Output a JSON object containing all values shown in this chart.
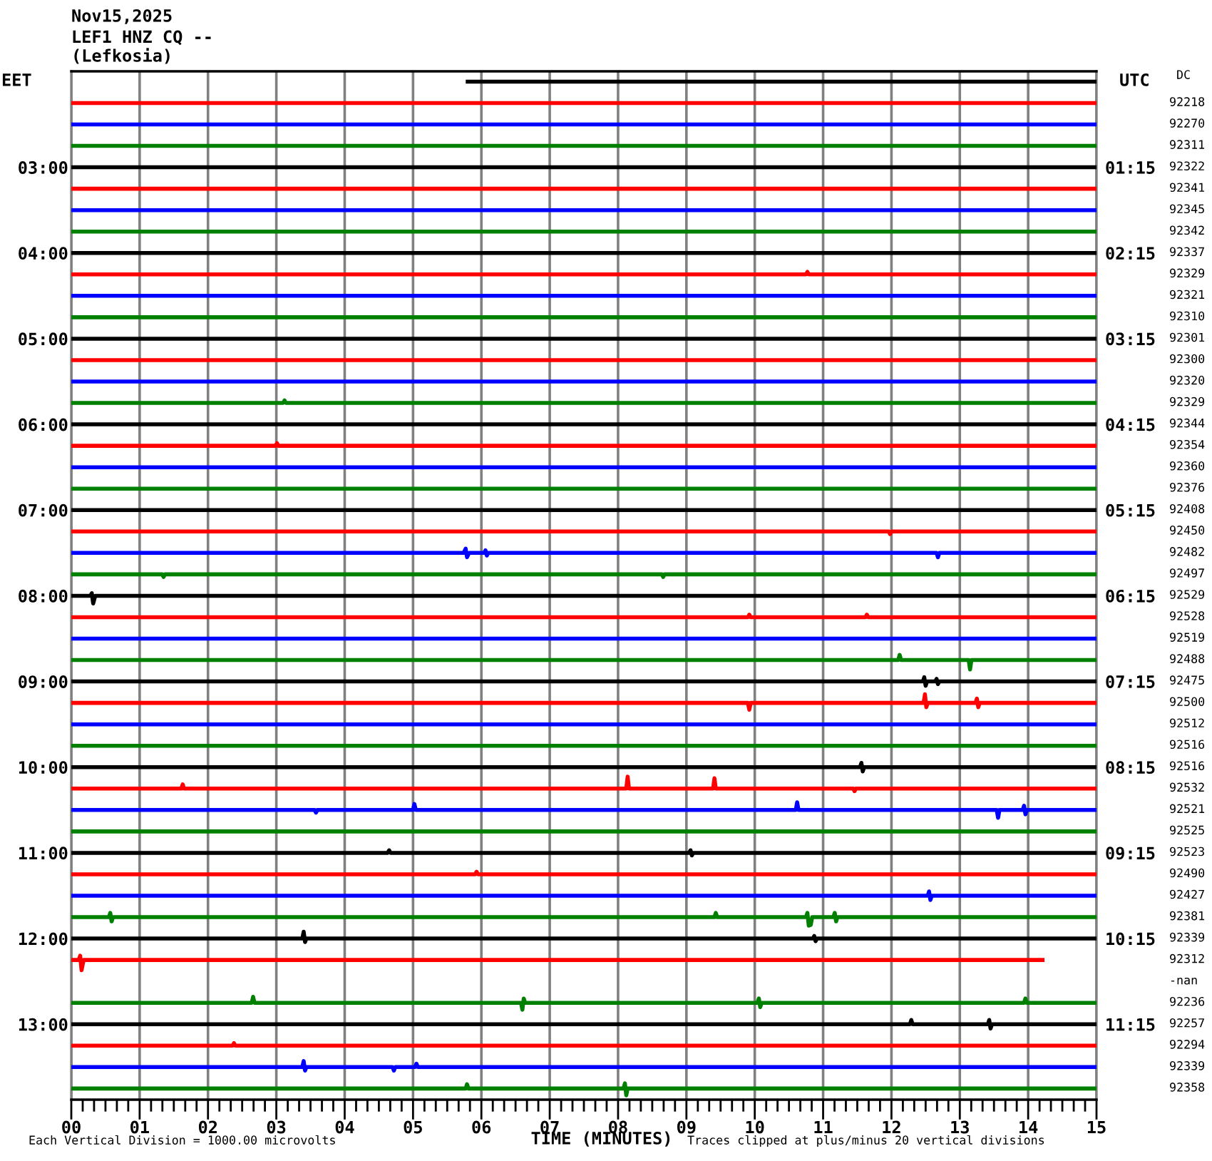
{
  "chart_data": {
    "type": "line",
    "title": "Nov15,2025",
    "subtitle": "LEF1 HNZ CQ --\n(Lefkosia)",
    "xlabel": "TIME (MINUTES)",
    "ylabel": "EET",
    "y2label": "UTC",
    "annotations": [
      "DC",
      "92218",
      "92270",
      "92311",
      "92322",
      "92341",
      "92345",
      "92342",
      "92337",
      "92329",
      "92321",
      "92310",
      "92301",
      "92300",
      "92320",
      "92329",
      "92344",
      "92354",
      "92360",
      "92376",
      "92408",
      "92450",
      "92482",
      "92497",
      "92529",
      "92528",
      "92519",
      "92488",
      "92475",
      "92500",
      "92512",
      "92516",
      "92516",
      "92532",
      "92521",
      "92525",
      "92523",
      "92490",
      "92427",
      "92381",
      "92339",
      "92312",
      "-nan",
      "92236",
      "92257",
      "92294",
      "92339",
      "92358",
      "Each Vertical Division = 1000.00 microvolts",
      "Traces clipped at plus/minus 20 vertical divisions"
    ],
    "grid": "x",
    "xlim": [
      0,
      15
    ],
    "xticks": [
      {
        "value": 0,
        "label": "00"
      },
      {
        "value": 0.167,
        "label": null
      },
      {
        "value": 0.333,
        "label": null
      },
      {
        "value": 0.5,
        "label": null
      },
      {
        "value": 0.667,
        "label": null
      },
      {
        "value": 0.833,
        "label": null
      },
      {
        "value": 1,
        "label": "01"
      },
      {
        "value": 1.167,
        "label": null
      },
      {
        "value": 1.333,
        "label": null
      },
      {
        "value": 1.5,
        "label": null
      },
      {
        "value": 1.667,
        "label": null
      },
      {
        "value": 1.833,
        "label": null
      },
      {
        "value": 2,
        "label": "02"
      },
      {
        "value": 2.167,
        "label": null
      },
      {
        "value": 2.333,
        "label": null
      },
      {
        "value": 2.5,
        "label": null
      },
      {
        "value": 2.667,
        "label": null
      },
      {
        "value": 2.833,
        "label": null
      },
      {
        "value": 3,
        "label": "03"
      },
      {
        "value": 3.167,
        "label": null
      },
      {
        "value": 3.333,
        "label": null
      },
      {
        "value": 3.5,
        "label": null
      },
      {
        "value": 3.667,
        "label": null
      },
      {
        "value": 3.833,
        "label": null
      },
      {
        "value": 4,
        "label": "04"
      },
      {
        "value": 4.167,
        "label": null
      },
      {
        "value": 4.333,
        "label": null
      },
      {
        "value": 4.5,
        "label": null
      },
      {
        "value": 4.667,
        "label": null
      },
      {
        "value": 4.833,
        "label": null
      },
      {
        "value": 5,
        "label": "05"
      },
      {
        "value": 5.167,
        "label": null
      },
      {
        "value": 5.333,
        "label": null
      },
      {
        "value": 5.5,
        "label": null
      },
      {
        "value": 5.667,
        "label": null
      },
      {
        "value": 5.833,
        "label": null
      },
      {
        "value": 6,
        "label": "06"
      },
      {
        "value": 6.167,
        "label": null
      },
      {
        "value": 6.333,
        "label": null
      },
      {
        "value": 6.5,
        "label": null
      },
      {
        "value": 6.667,
        "label": null
      },
      {
        "value": 6.833,
        "label": null
      },
      {
        "value": 7,
        "label": "07"
      },
      {
        "value": 7.167,
        "label": null
      },
      {
        "value": 7.333,
        "label": null
      },
      {
        "value": 7.5,
        "label": null
      },
      {
        "value": 7.667,
        "label": null
      },
      {
        "value": 7.833,
        "label": null
      },
      {
        "value": 8,
        "label": "08"
      },
      {
        "value": 8.167,
        "label": null
      },
      {
        "value": 8.333,
        "label": null
      },
      {
        "value": 8.5,
        "label": null
      },
      {
        "value": 8.667,
        "label": null
      },
      {
        "value": 8.833,
        "label": null
      },
      {
        "value": 9,
        "label": "09"
      },
      {
        "value": 9.167,
        "label": null
      },
      {
        "value": 9.333,
        "label": null
      },
      {
        "value": 9.5,
        "label": null
      },
      {
        "value": 9.667,
        "label": null
      },
      {
        "value": 9.833,
        "label": null
      },
      {
        "value": 10,
        "label": "10"
      },
      {
        "value": 10.167,
        "label": null
      },
      {
        "value": 10.333,
        "label": null
      },
      {
        "value": 10.5,
        "label": null
      },
      {
        "value": 10.667,
        "label": null
      },
      {
        "value": 10.833,
        "label": null
      },
      {
        "value": 11,
        "label": "11"
      },
      {
        "value": 11.167,
        "label": null
      },
      {
        "value": 11.333,
        "label": null
      },
      {
        "value": 11.5,
        "label": null
      },
      {
        "value": 11.667,
        "label": null
      },
      {
        "value": 11.833,
        "label": null
      },
      {
        "value": 12,
        "label": "12"
      },
      {
        "value": 12.167,
        "label": null
      },
      {
        "value": 12.333,
        "label": null
      },
      {
        "value": 12.5,
        "label": null
      },
      {
        "value": 12.667,
        "label": null
      },
      {
        "value": 12.833,
        "label": null
      },
      {
        "value": 13,
        "label": "13"
      },
      {
        "value": 13.167,
        "label": null
      },
      {
        "value": 13.333,
        "label": null
      },
      {
        "value": 13.5,
        "label": null
      },
      {
        "value": 13.667,
        "label": null
      },
      {
        "value": 13.833,
        "label": null
      },
      {
        "value": 14,
        "label": "14"
      },
      {
        "value": 14.167,
        "label": null
      },
      {
        "value": 14.333,
        "label": null
      },
      {
        "value": 14.5,
        "label": null
      },
      {
        "value": 14.667,
        "label": null
      },
      {
        "value": 14.833,
        "label": null
      },
      {
        "value": 15,
        "label": "15"
      }
    ],
    "ylim": [
      13.88,
      1.88
    ],
    "yticks": [
      {
        "value": 3,
        "label": "03:00"
      },
      {
        "value": 4,
        "label": "04:00"
      },
      {
        "value": 5,
        "label": "05:00"
      },
      {
        "value": 6,
        "label": "06:00"
      },
      {
        "value": 7,
        "label": "07:00"
      },
      {
        "value": 8,
        "label": "08:00"
      },
      {
        "value": 9,
        "label": "09:00"
      },
      {
        "value": 10,
        "label": "10:00"
      },
      {
        "value": 11,
        "label": "11:00"
      },
      {
        "value": 12,
        "label": "12:00"
      },
      {
        "value": 13,
        "label": "13:00"
      }
    ],
    "y2lim": [
      12.13,
      0.13
    ],
    "y2ticks": [
      {
        "value": 1.25,
        "label": "01:15"
      },
      {
        "value": 2.25,
        "label": "02:15"
      },
      {
        "value": 3.25,
        "label": "03:15"
      },
      {
        "value": 4.25,
        "label": "04:15"
      },
      {
        "value": 5.25,
        "label": "05:15"
      },
      {
        "value": 6.25,
        "label": "06:15"
      },
      {
        "value": 7.25,
        "label": "07:15"
      },
      {
        "value": 8.25,
        "label": "08:15"
      },
      {
        "value": 9.25,
        "label": "09:15"
      },
      {
        "value": 10.25,
        "label": "10:15"
      },
      {
        "value": 11.25,
        "label": "11:15"
      }
    ],
    "series": [
      {
        "color": "#000000",
        "x": [
          5.8,
          15
        ],
        "values": [
          2,
          2
        ]
      },
      {
        "color": "#ff0000",
        "x": [
          0,
          15
        ],
        "values": [
          2.25,
          2.25
        ]
      },
      {
        "color": "#0000ff",
        "x": [
          0,
          15
        ],
        "values": [
          2.5,
          2.5
        ]
      },
      {
        "color": "#008000",
        "x": [
          0,
          15
        ],
        "values": [
          2.75,
          2.75
        ]
      },
      {
        "color": "#000000",
        "x": [
          0,
          15
        ],
        "values": [
          3,
          3
        ]
      },
      {
        "color": "#ff0000",
        "x": [
          0,
          15
        ],
        "values": [
          3.25,
          3.25
        ]
      },
      {
        "color": "#0000ff",
        "x": [
          0,
          15
        ],
        "values": [
          3.5,
          3.5
        ]
      },
      {
        "color": "#008000",
        "x": [
          0,
          15
        ],
        "values": [
          3.75,
          3.75
        ]
      },
      {
        "color": "#000000",
        "x": [
          0,
          15
        ],
        "values": [
          4,
          4
        ]
      },
      {
        "color": "#ff0000",
        "x": [
          0,
          10.75,
          10.77,
          10.79,
          15
        ],
        "values": [
          4.25,
          4.25,
          4.22,
          4.25,
          4.25
        ]
      },
      {
        "color": "#0000ff",
        "x": [
          0,
          15
        ],
        "values": [
          4.5,
          4.5
        ]
      },
      {
        "color": "#008000",
        "x": [
          0,
          15
        ],
        "values": [
          4.75,
          4.75
        ]
      },
      {
        "color": "#000000",
        "x": [
          0,
          15
        ],
        "values": [
          5,
          5
        ]
      },
      {
        "color": "#ff0000",
        "x": [
          0,
          15
        ],
        "values": [
          5.25,
          5.25
        ]
      },
      {
        "color": "#0000ff",
        "x": [
          0,
          15
        ],
        "values": [
          5.5,
          5.5
        ]
      },
      {
        "color": "#008000",
        "x": [
          0,
          3.1,
          3.12,
          3.14,
          15
        ],
        "values": [
          5.75,
          5.75,
          5.72,
          5.75,
          5.75
        ]
      },
      {
        "color": "#000000",
        "x": [
          0,
          15
        ],
        "values": [
          6,
          6
        ]
      },
      {
        "color": "#ff0000",
        "x": [
          0,
          2.99,
          3.01,
          3.03,
          15
        ],
        "values": [
          6.25,
          6.25,
          6.22,
          6.25,
          6.25
        ]
      },
      {
        "color": "#0000ff",
        "x": [
          0,
          15
        ],
        "values": [
          6.5,
          6.5
        ]
      },
      {
        "color": "#008000",
        "x": [
          0,
          15
        ],
        "values": [
          6.75,
          6.75
        ]
      },
      {
        "color": "#000000",
        "x": [
          0,
          15
        ],
        "values": [
          7,
          7
        ]
      },
      {
        "color": "#ff0000",
        "x": [
          0,
          11.96,
          11.98,
          12,
          15
        ],
        "values": [
          7.25,
          7.25,
          7.28,
          7.25,
          7.25
        ]
      },
      {
        "color": "#0000ff",
        "x": [
          0,
          5.74,
          5.77,
          5.79,
          5.82,
          6.04,
          6.06,
          6.08,
          6.1,
          12.66,
          12.68,
          12.7,
          15
        ],
        "values": [
          7.5,
          7.5,
          7.45,
          7.55,
          7.5,
          7.5,
          7.47,
          7.53,
          7.5,
          7.5,
          7.55,
          7.5,
          7.5
        ]
      },
      {
        "color": "#008000",
        "x": [
          0,
          1.33,
          1.35,
          1.37,
          8.64,
          8.66,
          8.68,
          15
        ],
        "values": [
          7.75,
          7.75,
          7.78,
          7.75,
          7.75,
          7.78,
          7.75,
          7.75
        ]
      },
      {
        "color": "#000000",
        "x": [
          0,
          0.28,
          0.3,
          0.32,
          0.35,
          15
        ],
        "values": [
          8,
          8,
          7.97,
          8.09,
          8,
          8
        ]
      },
      {
        "color": "#ff0000",
        "x": [
          0,
          9.9,
          9.92,
          9.94,
          11.62,
          11.64,
          11.66,
          15
        ],
        "values": [
          8.25,
          8.25,
          8.22,
          8.25,
          8.25,
          8.22,
          8.25,
          8.25
        ]
      },
      {
        "color": "#0000ff",
        "x": [
          0,
          15
        ],
        "values": [
          8.5,
          8.5
        ]
      },
      {
        "color": "#008000",
        "x": [
          0,
          12.1,
          12.12,
          12.14,
          13.13,
          13.15,
          13.17,
          15
        ],
        "values": [
          8.75,
          8.75,
          8.69,
          8.75,
          8.75,
          8.86,
          8.75,
          8.75
        ]
      },
      {
        "color": "#000000",
        "x": [
          0,
          12.46,
          12.48,
          12.5,
          12.52,
          12.64,
          12.66,
          12.68,
          12.7,
          15
        ],
        "values": [
          9,
          9,
          8.95,
          9.05,
          9,
          9,
          8.97,
          9.03,
          9,
          9
        ]
      },
      {
        "color": "#ff0000",
        "x": [
          0,
          9.9,
          9.92,
          9.94,
          12.47,
          12.49,
          12.51,
          12.53,
          13.23,
          13.25,
          13.27,
          13.29,
          15
        ],
        "values": [
          9.25,
          9.25,
          9.33,
          9.25,
          9.25,
          9.15,
          9.3,
          9.25,
          9.25,
          9.2,
          9.3,
          9.25,
          9.25
        ]
      },
      {
        "color": "#0000ff",
        "x": [
          0,
          15
        ],
        "values": [
          9.5,
          9.5
        ]
      },
      {
        "color": "#008000",
        "x": [
          0,
          15
        ],
        "values": [
          9.75,
          9.75
        ]
      },
      {
        "color": "#000000",
        "x": [
          0,
          11.54,
          11.56,
          11.58,
          11.6,
          15
        ],
        "values": [
          10,
          10,
          9.95,
          10.05,
          10,
          10
        ]
      },
      {
        "color": "#ff0000",
        "x": [
          0,
          1.61,
          1.63,
          1.65,
          8.12,
          8.14,
          8.16,
          9.39,
          9.41,
          9.43,
          11.44,
          11.46,
          11.48,
          15
        ],
        "values": [
          10.25,
          10.25,
          10.2,
          10.25,
          10.25,
          10.11,
          10.25,
          10.25,
          10.13,
          10.25,
          10.25,
          10.28,
          10.25,
          10.25
        ]
      },
      {
        "color": "#0000ff",
        "x": [
          0,
          3.56,
          3.58,
          3.6,
          5,
          5.02,
          5.04,
          10.6,
          10.62,
          10.64,
          13.54,
          13.56,
          13.58,
          13.92,
          13.94,
          13.96,
          13.98,
          15
        ],
        "values": [
          10.5,
          10.5,
          10.53,
          10.5,
          10.5,
          10.43,
          10.5,
          10.5,
          10.41,
          10.5,
          10.5,
          10.59,
          10.5,
          10.5,
          10.45,
          10.55,
          10.5,
          10.5
        ]
      },
      {
        "color": "#008000",
        "x": [
          0,
          15
        ],
        "values": [
          10.75,
          10.75
        ]
      },
      {
        "color": "#000000",
        "x": [
          0,
          4.63,
          4.65,
          4.67,
          9.04,
          9.06,
          9.08,
          9.1,
          15
        ],
        "values": [
          11,
          11,
          10.97,
          11,
          11,
          10.97,
          11.03,
          11,
          11
        ]
      },
      {
        "color": "#ff0000",
        "x": [
          0,
          5.91,
          5.93,
          5.95,
          15
        ],
        "values": [
          11.25,
          11.25,
          11.22,
          11.25,
          11.25
        ]
      },
      {
        "color": "#0000ff",
        "x": [
          0,
          12.53,
          12.55,
          12.57,
          12.59,
          15
        ],
        "values": [
          11.5,
          11.5,
          11.45,
          11.55,
          11.5,
          11.5
        ]
      },
      {
        "color": "#008000",
        "x": [
          0,
          0.55,
          0.57,
          0.59,
          0.61,
          9.41,
          9.43,
          9.45,
          10.75,
          10.77,
          10.79,
          10.82,
          10.84,
          11.15,
          11.17,
          11.19,
          11.21,
          15
        ],
        "values": [
          11.75,
          11.75,
          11.7,
          11.8,
          11.75,
          11.75,
          11.7,
          11.75,
          11.75,
          11.7,
          11.85,
          11.84,
          11.75,
          11.75,
          11.7,
          11.8,
          11.75,
          11.75
        ]
      },
      {
        "color": "#000000",
        "x": [
          0,
          3.38,
          3.4,
          3.42,
          3.44,
          10.85,
          10.87,
          10.89,
          10.91,
          15
        ],
        "values": [
          12,
          12,
          11.92,
          12.04,
          12,
          12,
          11.97,
          12.03,
          12,
          12
        ]
      },
      {
        "color": "#ff0000",
        "x": [
          0,
          0.11,
          0.13,
          0.15,
          0.18,
          14.21
        ],
        "values": [
          12.25,
          12.25,
          12.2,
          12.37,
          12.25,
          12.25
        ]
      },
      {
        "color": "#008000",
        "x": [
          0,
          2.64,
          2.66,
          2.68,
          6.58,
          6.6,
          6.62,
          6.64,
          10.04,
          10.06,
          10.08,
          10.1,
          13.94,
          13.96,
          13.98,
          15
        ],
        "values": [
          12.75,
          12.75,
          12.68,
          12.75,
          12.75,
          12.83,
          12.7,
          12.75,
          12.75,
          12.7,
          12.8,
          12.75,
          12.75,
          12.7,
          12.75,
          12.75
        ]
      },
      {
        "color": "#000000",
        "x": [
          0,
          12.27,
          12.29,
          12.31,
          13.41,
          13.43,
          13.45,
          13.47,
          15
        ],
        "values": [
          13,
          13,
          12.95,
          13,
          13,
          12.95,
          13.05,
          13,
          13
        ]
      },
      {
        "color": "#ff0000",
        "x": [
          0,
          2.36,
          2.38,
          2.4,
          15
        ],
        "values": [
          13.25,
          13.25,
          13.22,
          13.25,
          13.25
        ]
      },
      {
        "color": "#0000ff",
        "x": [
          0,
          3.38,
          3.4,
          3.42,
          3.44,
          4.7,
          4.72,
          4.74,
          5.03,
          5.05,
          5.07,
          15
        ],
        "values": [
          13.5,
          13.5,
          13.43,
          13.54,
          13.5,
          13.5,
          13.54,
          13.5,
          13.5,
          13.46,
          13.5,
          13.5
        ]
      },
      {
        "color": "#008000",
        "x": [
          0,
          5.77,
          5.79,
          5.81,
          8.08,
          8.1,
          8.12,
          8.14,
          15
        ],
        "values": [
          13.75,
          13.75,
          13.7,
          13.75,
          13.75,
          13.69,
          13.83,
          13.75,
          13.75
        ]
      }
    ]
  }
}
